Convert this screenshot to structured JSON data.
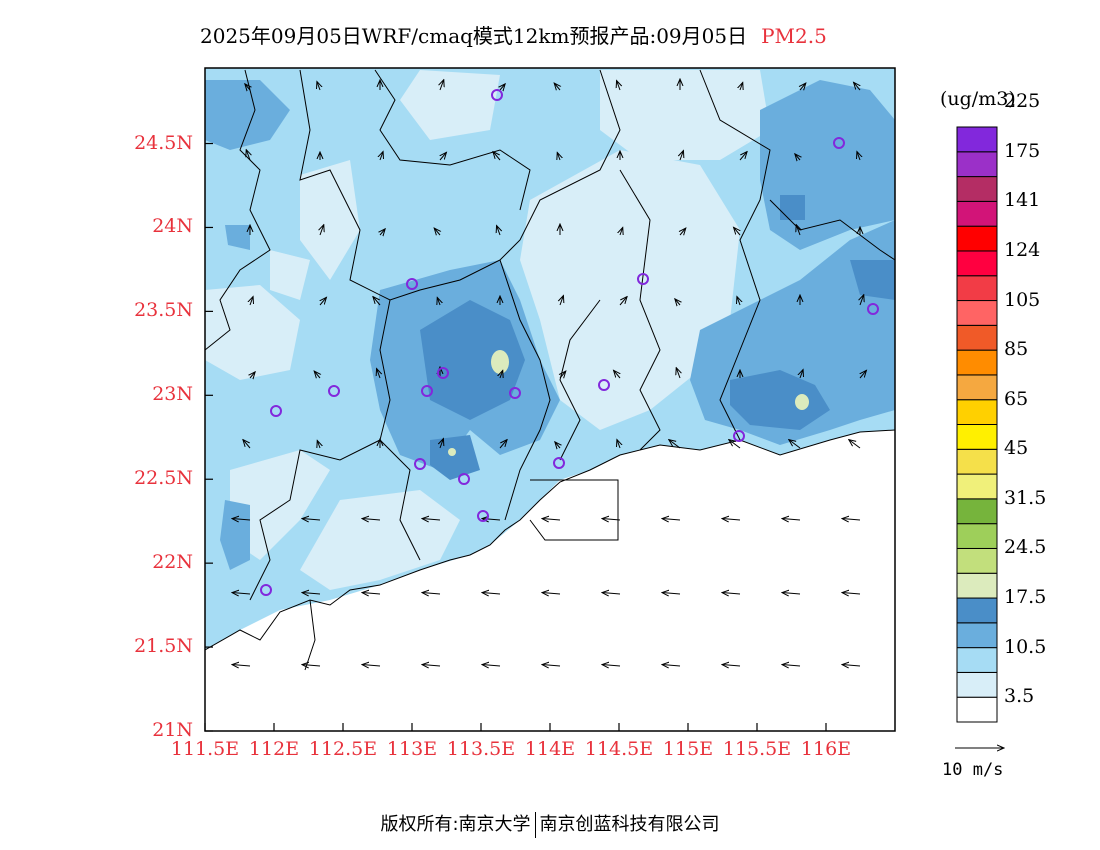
{
  "title": {
    "text": "2025年09月05日WRF/cmaq模式12km预报产品:09月05日",
    "pollutant": "PM2.5"
  },
  "axes": {
    "lat_labels": [
      "24.5N",
      "24N",
      "23.5N",
      "23N",
      "22.5N",
      "22N",
      "21.5N",
      "21N"
    ],
    "lat_values": [
      24.5,
      24.0,
      23.5,
      23.0,
      22.5,
      22.0,
      21.5,
      21.0
    ],
    "lon_labels": [
      "111.5E",
      "112E",
      "112.5E",
      "113E",
      "113.5E",
      "114E",
      "114.5E",
      "115E",
      "115.5E",
      "116E"
    ],
    "lon_values": [
      111.5,
      112.0,
      112.5,
      113.0,
      113.5,
      114.0,
      114.5,
      115.0,
      115.5,
      116.0
    ],
    "lon_range": [
      111.5,
      116.5
    ],
    "lat_range": [
      21.0,
      24.95
    ]
  },
  "colorbar": {
    "unit": "(ug/m3)",
    "colors": [
      "#ffffff",
      "#d8eef8",
      "#a6dcf4",
      "#6aaedd",
      "#4a8ec8",
      "#dcebbd",
      "#c2df7c",
      "#9ecf5a",
      "#76b43c",
      "#f0f07a",
      "#f5e04a",
      "#fff000",
      "#ffd000",
      "#f5a840",
      "#ff8c00",
      "#f05a28",
      "#ff6464",
      "#f23c46",
      "#ff0040",
      "#ff0000",
      "#d21478",
      "#b42d64",
      "#9b30c8",
      "#8228dc"
    ],
    "labels": [
      "3.5",
      "10.5",
      "17.5",
      "24.5",
      "31.5",
      "45",
      "65",
      "85",
      "105",
      "124",
      "141",
      "175",
      "225"
    ]
  },
  "wind_reference": {
    "label": "10 m/s"
  },
  "stations_visible": 17,
  "footer": {
    "left": "版权所有:南京大学",
    "right": "南京创蓝科技有限公司"
  }
}
